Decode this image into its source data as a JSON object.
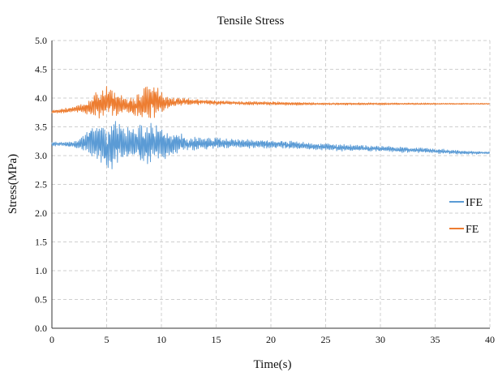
{
  "chart_data": {
    "type": "line",
    "title": "Tensile Stress",
    "xlabel": "Time(s)",
    "ylabel": "Stress(MPa)",
    "xlim": [
      0,
      40
    ],
    "ylim": [
      0,
      5
    ],
    "x_ticks": [
      0,
      5,
      10,
      15,
      20,
      25,
      30,
      35,
      40
    ],
    "y_ticks": [
      0.0,
      0.5,
      1.0,
      1.5,
      2.0,
      2.5,
      3.0,
      3.5,
      4.0,
      4.5,
      5.0
    ],
    "x_tick_labels": [
      "0",
      "5",
      "10",
      "15",
      "20",
      "25",
      "30",
      "35",
      "40"
    ],
    "y_tick_labels": [
      "0.0",
      "0.5",
      "1.0",
      "1.5",
      "2.0",
      "2.5",
      "3.0",
      "3.5",
      "4.0",
      "4.5",
      "5.0"
    ],
    "grid": true,
    "legend_position": "right",
    "series": [
      {
        "name": "IFE",
        "color": "#5b9bd5",
        "x": [
          0,
          1,
          2,
          3,
          3.5,
          4,
          4.5,
          5,
          5.5,
          6,
          6.5,
          7,
          7.5,
          8,
          8.5,
          9,
          9.5,
          10,
          10.5,
          11,
          12,
          13,
          14,
          15,
          16,
          18,
          20,
          22,
          24,
          26,
          28,
          30,
          32,
          34,
          36,
          38,
          40
        ],
        "mean": [
          3.2,
          3.2,
          3.19,
          3.22,
          3.25,
          3.22,
          3.2,
          3.18,
          3.2,
          3.22,
          3.2,
          3.18,
          3.2,
          3.22,
          3.2,
          3.2,
          3.22,
          3.2,
          3.2,
          3.22,
          3.22,
          3.2,
          3.2,
          3.22,
          3.22,
          3.2,
          3.2,
          3.18,
          3.16,
          3.14,
          3.13,
          3.12,
          3.1,
          3.09,
          3.07,
          3.05,
          3.05
        ],
        "amplitude": [
          0.04,
          0.04,
          0.05,
          0.15,
          0.28,
          0.3,
          0.35,
          0.4,
          0.45,
          0.38,
          0.35,
          0.3,
          0.3,
          0.32,
          0.35,
          0.38,
          0.35,
          0.3,
          0.25,
          0.2,
          0.16,
          0.12,
          0.1,
          0.1,
          0.09,
          0.08,
          0.07,
          0.07,
          0.06,
          0.06,
          0.05,
          0.05,
          0.05,
          0.04,
          0.04,
          0.03,
          0.02
        ]
      },
      {
        "name": "FE",
        "color": "#ed7d31",
        "x": [
          0,
          1,
          2,
          3,
          3.5,
          4,
          4.5,
          5,
          5.5,
          6,
          6.5,
          7,
          7.5,
          8,
          8.5,
          9,
          9.5,
          10,
          10.5,
          11,
          12,
          13,
          14,
          15,
          16,
          18,
          20,
          22,
          24,
          26,
          28,
          30,
          32,
          34,
          36,
          38,
          40
        ],
        "mean": [
          3.76,
          3.78,
          3.8,
          3.82,
          3.85,
          3.88,
          3.9,
          3.92,
          3.92,
          3.9,
          3.88,
          3.86,
          3.85,
          3.88,
          3.92,
          3.95,
          3.95,
          3.92,
          3.92,
          3.93,
          3.94,
          3.93,
          3.93,
          3.92,
          3.92,
          3.91,
          3.91,
          3.9,
          3.9,
          3.9,
          3.9,
          3.9,
          3.9,
          3.9,
          3.9,
          3.9,
          3.9
        ],
        "amplitude": [
          0.03,
          0.04,
          0.05,
          0.1,
          0.18,
          0.22,
          0.25,
          0.28,
          0.25,
          0.22,
          0.18,
          0.15,
          0.18,
          0.25,
          0.3,
          0.35,
          0.28,
          0.2,
          0.12,
          0.08,
          0.06,
          0.05,
          0.04,
          0.04,
          0.03,
          0.03,
          0.03,
          0.03,
          0.02,
          0.02,
          0.02,
          0.02,
          0.015,
          0.015,
          0.01,
          0.01,
          0.01
        ]
      }
    ]
  }
}
